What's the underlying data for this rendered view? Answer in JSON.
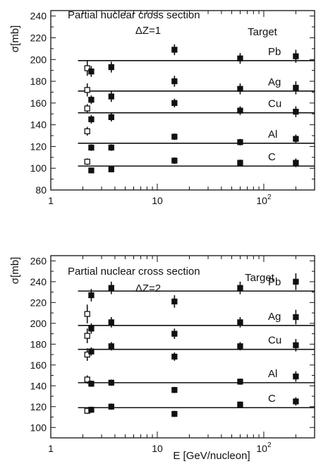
{
  "chart_data": [
    {
      "type": "scatter",
      "title": "Partial nuclear cross section",
      "annotation": "ΔZ=1",
      "legend_title": "Target",
      "ylabel": "σ[mb]",
      "xlabel": "",
      "xscale": "log",
      "xlim": [
        1,
        300
      ],
      "ylim": [
        80,
        245
      ],
      "yticks": [
        80,
        100,
        120,
        140,
        160,
        180,
        200,
        220,
        240
      ],
      "xticks": [
        {
          "value": 1,
          "label": "1"
        },
        {
          "value": 10,
          "label": "10"
        },
        {
          "value": 100,
          "label": "10",
          "sup": "2"
        }
      ],
      "series": [
        {
          "name": "Pb",
          "fit": 199,
          "open": [
            {
              "x": 2.2,
              "y": 192,
              "err": 7
            }
          ],
          "filled": [
            {
              "x": 2.4,
              "y": 189,
              "err": 5
            },
            {
              "x": 3.7,
              "y": 193,
              "err": 5
            },
            {
              "x": 14.5,
              "y": 209,
              "err": 5
            },
            {
              "x": 60,
              "y": 201,
              "err": 5
            },
            {
              "x": 200,
              "y": 203,
              "err": 6
            }
          ]
        },
        {
          "name": "Ag",
          "fit": 171,
          "open": [
            {
              "x": 2.2,
              "y": 172,
              "err": 6
            }
          ],
          "filled": [
            {
              "x": 2.4,
              "y": 163,
              "err": 4
            },
            {
              "x": 3.7,
              "y": 166,
              "err": 5
            },
            {
              "x": 14.5,
              "y": 180,
              "err": 5
            },
            {
              "x": 60,
              "y": 173,
              "err": 5
            },
            {
              "x": 200,
              "y": 174,
              "err": 6
            }
          ]
        },
        {
          "name": "Cu",
          "fit": 151,
          "open": [
            {
              "x": 2.2,
              "y": 155,
              "err": 4
            }
          ],
          "filled": [
            {
              "x": 2.4,
              "y": 145,
              "err": 4
            },
            {
              "x": 3.7,
              "y": 147,
              "err": 4
            },
            {
              "x": 14.5,
              "y": 160,
              "err": 4
            },
            {
              "x": 60,
              "y": 153,
              "err": 4
            },
            {
              "x": 200,
              "y": 152,
              "err": 5
            }
          ]
        },
        {
          "name": "Al",
          "fit": 123,
          "open": [
            {
              "x": 2.2,
              "y": 134,
              "err": 4
            }
          ],
          "filled": [
            {
              "x": 2.4,
              "y": 119,
              "err": 3
            },
            {
              "x": 3.7,
              "y": 119,
              "err": 3
            },
            {
              "x": 14.5,
              "y": 129,
              "err": 3
            },
            {
              "x": 60,
              "y": 124,
              "err": 3
            },
            {
              "x": 200,
              "y": 127,
              "err": 4
            }
          ]
        },
        {
          "name": "C",
          "fit": 102,
          "open": [
            {
              "x": 2.2,
              "y": 106,
              "err": 3
            }
          ],
          "filled": [
            {
              "x": 2.4,
              "y": 98,
              "err": 2
            },
            {
              "x": 3.7,
              "y": 99,
              "err": 2
            },
            {
              "x": 14.5,
              "y": 107,
              "err": 3
            },
            {
              "x": 60,
              "y": 105,
              "err": 3
            },
            {
              "x": 200,
              "y": 105,
              "err": 4
            }
          ]
        }
      ]
    },
    {
      "type": "scatter",
      "title": "Partial nuclear cross section",
      "annotation": "ΔZ=2",
      "legend_title": "Target",
      "ylabel": "σ[mb]",
      "xlabel": "E  [GeV/nucleon]",
      "xscale": "log",
      "xlim": [
        1,
        300
      ],
      "ylim": [
        90,
        265
      ],
      "yticks": [
        100,
        120,
        140,
        160,
        180,
        200,
        220,
        240,
        260
      ],
      "xticks": [
        {
          "value": 1,
          "label": "1"
        },
        {
          "value": 10,
          "label": "10"
        },
        {
          "value": 100,
          "label": "10",
          "sup": "2"
        }
      ],
      "series": [
        {
          "name": "Pb",
          "fit": 231,
          "open": [
            {
              "x": 2.2,
              "y": 209,
              "err": 9
            }
          ],
          "filled": [
            {
              "x": 2.4,
              "y": 227,
              "err": 6
            },
            {
              "x": 3.7,
              "y": 234,
              "err": 6
            },
            {
              "x": 14.5,
              "y": 221,
              "err": 6
            },
            {
              "x": 60,
              "y": 234,
              "err": 6
            },
            {
              "x": 200,
              "y": 240,
              "err": 8
            }
          ]
        },
        {
          "name": "Ag",
          "fit": 198,
          "open": [
            {
              "x": 2.2,
              "y": 188,
              "err": 7
            }
          ],
          "filled": [
            {
              "x": 2.4,
              "y": 195,
              "err": 5
            },
            {
              "x": 3.7,
              "y": 201,
              "err": 5
            },
            {
              "x": 14.5,
              "y": 190,
              "err": 5
            },
            {
              "x": 60,
              "y": 201,
              "err": 5
            },
            {
              "x": 200,
              "y": 206,
              "err": 7
            }
          ]
        },
        {
          "name": "Cu",
          "fit": 175,
          "open": [
            {
              "x": 2.2,
              "y": 170,
              "err": 6
            }
          ],
          "filled": [
            {
              "x": 2.4,
              "y": 173,
              "err": 4
            },
            {
              "x": 3.7,
              "y": 178,
              "err": 4
            },
            {
              "x": 14.5,
              "y": 168,
              "err": 4
            },
            {
              "x": 60,
              "y": 178,
              "err": 4
            },
            {
              "x": 200,
              "y": 179,
              "err": 6
            }
          ]
        },
        {
          "name": "Al",
          "fit": 143,
          "open": [
            {
              "x": 2.2,
              "y": 146,
              "err": 4
            }
          ],
          "filled": [
            {
              "x": 2.4,
              "y": 142,
              "err": 3
            },
            {
              "x": 3.7,
              "y": 143,
              "err": 3
            },
            {
              "x": 14.5,
              "y": 136,
              "err": 3
            },
            {
              "x": 60,
              "y": 144,
              "err": 3
            },
            {
              "x": 200,
              "y": 149,
              "err": 5
            }
          ]
        },
        {
          "name": "C",
          "fit": 119,
          "open": [
            {
              "x": 2.2,
              "y": 116,
              "err": 3
            }
          ],
          "filled": [
            {
              "x": 2.4,
              "y": 117,
              "err": 3
            },
            {
              "x": 3.7,
              "y": 120,
              "err": 3
            },
            {
              "x": 14.5,
              "y": 113,
              "err": 3
            },
            {
              "x": 60,
              "y": 122,
              "err": 3
            },
            {
              "x": 200,
              "y": 125,
              "err": 4
            }
          ]
        }
      ]
    }
  ]
}
